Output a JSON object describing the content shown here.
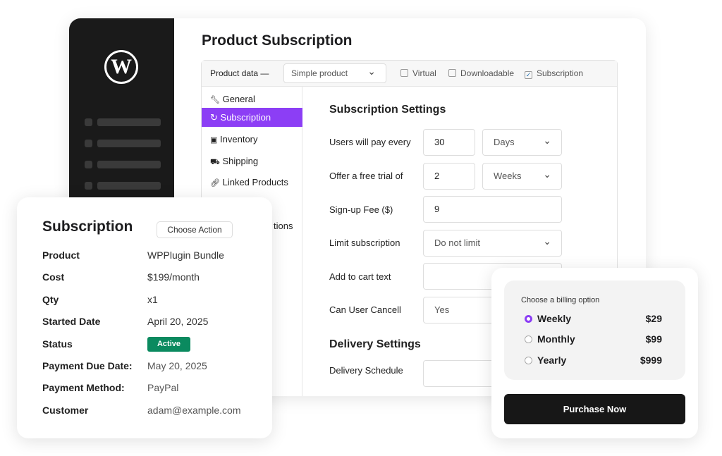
{
  "page": {
    "title": "Product Subscription"
  },
  "product_data": {
    "label": "Product data —",
    "type_select": "Simple product",
    "virtual": "Virtual",
    "downloadable": "Downloadable",
    "subscription": "Subscription",
    "subscription_checked": true,
    "virtual_checked": false,
    "downloadable_checked": false
  },
  "tabs": [
    {
      "icon": "wrench-icon",
      "glyph": "🔧︎",
      "label": "General"
    },
    {
      "icon": "refresh-icon",
      "glyph": "↻",
      "label": "Subscription",
      "active": true
    },
    {
      "icon": "inventory-icon",
      "glyph": "▣",
      "label": "Inventory"
    },
    {
      "icon": "truck-icon",
      "glyph": "⛟",
      "label": "Shipping"
    },
    {
      "icon": "link-icon",
      "glyph": "🔗︎",
      "label": "Linked Products"
    },
    {
      "label": "tions"
    }
  ],
  "settings": {
    "heading": "Subscription Settings",
    "pay_every": {
      "label": "Users will pay every",
      "value": "30",
      "unit": "Days"
    },
    "free_trial": {
      "label": "Offer a free trial of",
      "value": "2",
      "unit": "Weeks"
    },
    "signup_fee": {
      "label": "Sign-up Fee ($)",
      "value": "9"
    },
    "limit": {
      "label": "Limit subscription",
      "value": "Do not limit"
    },
    "cart_text": {
      "label": "Add to cart text",
      "value": ""
    },
    "cancel": {
      "label": "Can User Cancell",
      "value": "Yes"
    },
    "delivery_heading": "Delivery Settings",
    "delivery_schedule": {
      "label": "Delivery Schedule",
      "value": ""
    }
  },
  "subscription_card": {
    "title": "Subscription",
    "action_button": "Choose Action",
    "rows": [
      {
        "label": "Product",
        "value": "WPPlugin Bundle"
      },
      {
        "label": "Cost",
        "value": "$199/month"
      },
      {
        "label": "Qty",
        "value": "x1"
      },
      {
        "label": "Started Date",
        "value": "April 20, 2025"
      },
      {
        "label": "Status",
        "value": "Active"
      },
      {
        "label": "Payment Due Date:",
        "value": "May 20, 2025"
      },
      {
        "label": "Payment Method:",
        "value": "PayPal"
      },
      {
        "label": "Customer",
        "value": "adam@example.com"
      }
    ],
    "status_color": "#0a8a5f"
  },
  "billing": {
    "prompt": "Choose a billing option",
    "options": [
      {
        "label": "Weekly",
        "price": "$29",
        "selected": true
      },
      {
        "label": "Monthly",
        "price": "$99"
      },
      {
        "label": "Yearly",
        "price": "$999"
      }
    ],
    "button": "Purchase Now",
    "accent": "#8c3ef5"
  },
  "sidebar": {
    "logo": "W"
  }
}
